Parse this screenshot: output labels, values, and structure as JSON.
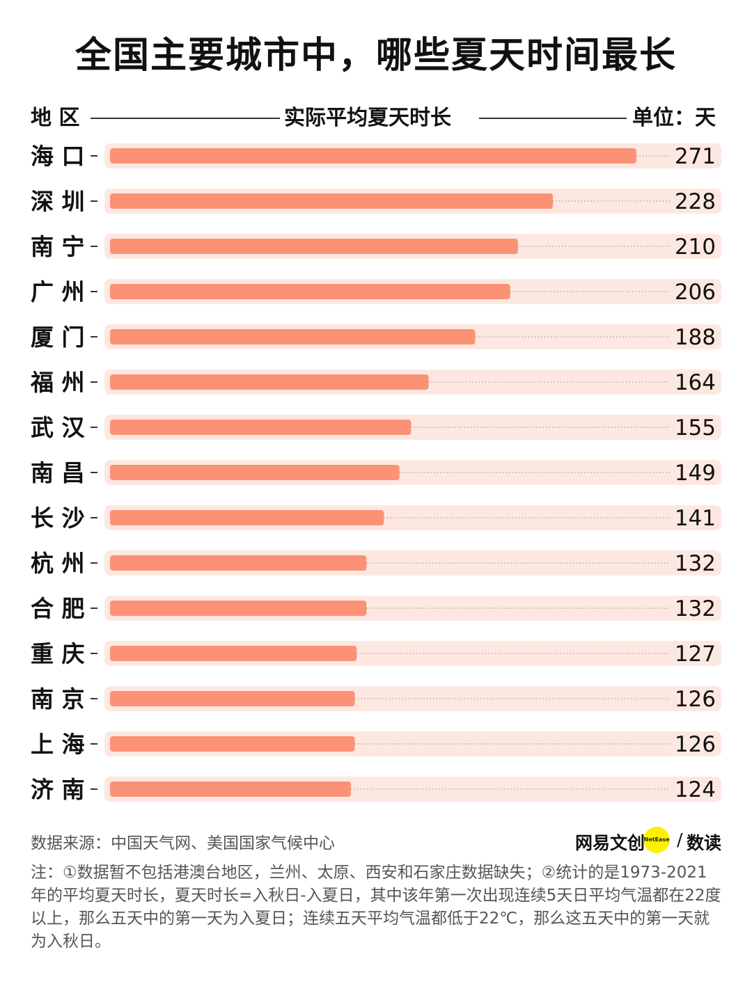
{
  "title": "全国主要城市中，哪些夏天时间最长",
  "header": {
    "region": "地 区",
    "metric": "实际平均夏天时长",
    "unit": "单位：天"
  },
  "colors": {
    "bar": "#fb9276",
    "track": "#fde8e1",
    "dots": "#b0a8a4"
  },
  "chart_data": {
    "type": "bar",
    "orientation": "horizontal",
    "categories": [
      "海 口",
      "深 圳",
      "南 宁",
      "广 州",
      "厦 门",
      "福 州",
      "武 汉",
      "南 昌",
      "长 沙",
      "杭 州",
      "合 肥",
      "重 庆",
      "南 京",
      "上 海",
      "济 南"
    ],
    "values": [
      271,
      228,
      210,
      206,
      188,
      164,
      155,
      149,
      141,
      132,
      132,
      127,
      126,
      126,
      124
    ],
    "xlim": [
      0,
      283
    ],
    "title": "实际平均夏天时长",
    "unit": "单位：天"
  },
  "footer": {
    "source": "数据来源：中国天气网、美国国家气候中心",
    "note": "注：①数据暂不包括港澳台地区，兰州、太原、西安和石家庄数据缺失；②统计的是1973-2021年的平均夏天时长，夏天时长=入秋日-入夏日，其中该年第一次出现连续5天日平均气温都在22度以上，那么五天中的第一天为入夏日；连续五天平均气温都低于22℃，那么这五天中的第一天就为入秋日。",
    "logo_main": "网易文创",
    "logo_badge": "NetEase",
    "logo_sep": "/",
    "logo_sub": "数读"
  }
}
